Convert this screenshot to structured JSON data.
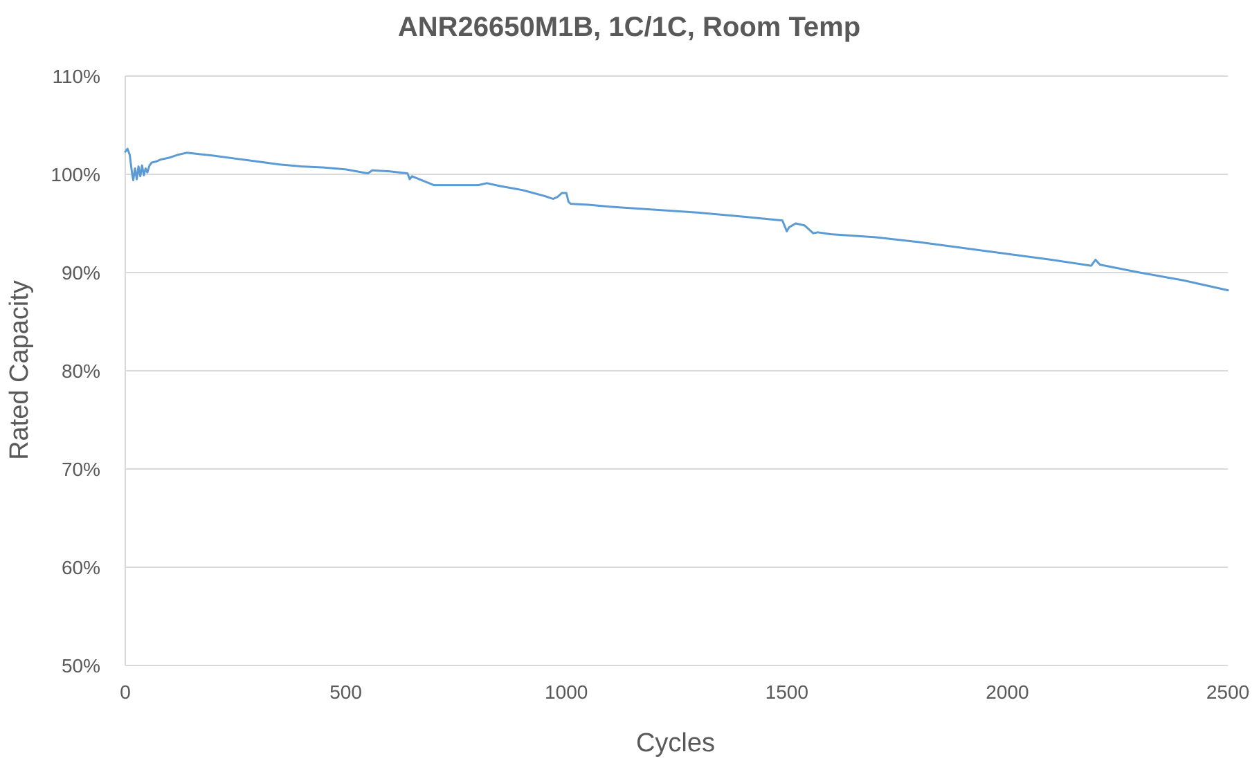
{
  "chart_data": {
    "type": "line",
    "title": "ANR26650M1B, 1C/1C, Room Temp",
    "xlabel": "Cycles",
    "ylabel": "Rated Capacity",
    "xlim": [
      0,
      2500
    ],
    "ylim": [
      50,
      110
    ],
    "x_ticks": [
      0,
      500,
      1000,
      1500,
      2000,
      2500
    ],
    "x_tick_labels": [
      "0",
      "500",
      "1000",
      "1500",
      "2000",
      "2500"
    ],
    "y_ticks": [
      50,
      60,
      70,
      80,
      90,
      100,
      110
    ],
    "y_tick_labels": [
      "50%",
      "60%",
      "70%",
      "80%",
      "90%",
      "100%",
      "110%"
    ],
    "grid": true,
    "legend": "none",
    "series_color": "#5b9bd5",
    "series": [
      {
        "x": [
          0,
          5,
          10,
          15,
          18,
          22,
          26,
          30,
          34,
          38,
          42,
          46,
          50,
          55,
          60,
          70,
          80,
          100,
          120,
          140,
          160,
          180,
          200,
          250,
          300,
          350,
          400,
          450,
          500,
          550,
          560,
          600,
          640,
          645,
          650,
          700,
          750,
          800,
          820,
          850,
          900,
          950,
          970,
          980,
          990,
          1000,
          1005,
          1010,
          1050,
          1100,
          1200,
          1300,
          1400,
          1490,
          1500,
          1505,
          1520,
          1540,
          1560,
          1570,
          1600,
          1700,
          1800,
          1900,
          2000,
          2100,
          2190,
          2200,
          2210,
          2300,
          2400,
          2500
        ],
        "y": [
          102.3,
          102.6,
          102.0,
          100.2,
          99.4,
          100.6,
          99.5,
          100.8,
          99.8,
          100.9,
          99.9,
          100.6,
          100.2,
          100.9,
          101.2,
          101.3,
          101.5,
          101.7,
          102.0,
          102.2,
          102.1,
          102.0,
          101.9,
          101.6,
          101.3,
          101.0,
          100.8,
          100.7,
          100.5,
          100.1,
          100.4,
          100.3,
          100.1,
          99.5,
          99.8,
          98.9,
          98.9,
          98.9,
          99.1,
          98.8,
          98.4,
          97.8,
          97.5,
          97.7,
          98.1,
          98.1,
          97.2,
          97.0,
          96.9,
          96.7,
          96.4,
          96.1,
          95.7,
          95.3,
          94.2,
          94.6,
          95.0,
          94.8,
          94.0,
          94.1,
          93.9,
          93.6,
          93.1,
          92.5,
          91.9,
          91.3,
          90.7,
          91.3,
          90.8,
          90.0,
          89.2,
          88.2
        ]
      }
    ]
  }
}
